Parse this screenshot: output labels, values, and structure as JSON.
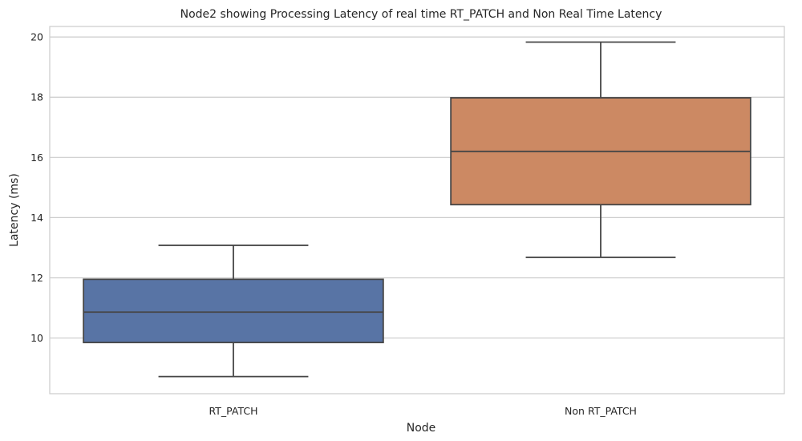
{
  "chart_data": {
    "type": "box",
    "title": "Node2 showing Processing Latency of real time RT_PATCH and Non Real Time Latency",
    "xlabel": "Node",
    "ylabel": "Latency (ms)",
    "ylim": [
      8.15,
      20.35
    ],
    "yticks": [
      10,
      12,
      14,
      16,
      18,
      20
    ],
    "grid": true,
    "categories": [
      "RT_PATCH",
      "Non RT_PATCH"
    ],
    "boxes": [
      {
        "name": "RT_PATCH",
        "whisker_low": 8.72,
        "q1": 9.85,
        "median": 10.86,
        "q3": 11.95,
        "whisker_high": 13.08,
        "color": "#5874a5"
      },
      {
        "name": "Non RT_PATCH",
        "whisker_low": 12.68,
        "q1": 14.43,
        "median": 16.2,
        "q3": 17.98,
        "whisker_high": 19.83,
        "color": "#cc8963"
      }
    ]
  }
}
